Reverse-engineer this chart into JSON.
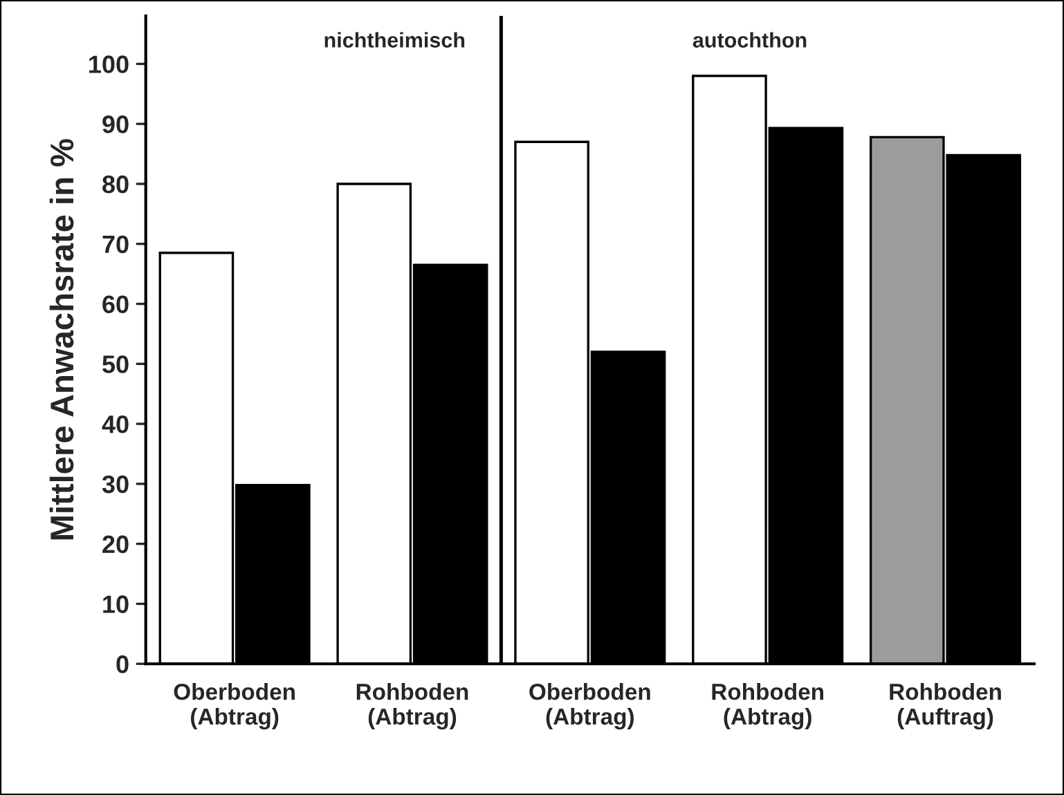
{
  "chart_data": {
    "type": "bar",
    "ylabel": "Mittlere Anwachsrate in %",
    "categories": [
      "Oberboden\n(Abtrag)",
      "Rohboden\n(Abtrag)",
      "Oberboden\n(Abtrag)",
      "Rohboden\n(Abtrag)",
      "Rohboden\n(Auftrag)"
    ],
    "series": [
      {
        "colors": [
          "#ffffff",
          "#ffffff",
          "#ffffff",
          "#ffffff",
          "#9c9c9c"
        ],
        "values": [
          68.5,
          80,
          87,
          98,
          87.8
        ]
      },
      {
        "color": "#000000",
        "values": [
          29.8,
          66.5,
          52,
          89.3,
          84.8
        ]
      }
    ],
    "ylim": [
      0,
      108
    ],
    "yticks": [
      0,
      10,
      20,
      30,
      40,
      50,
      60,
      70,
      80,
      90,
      100
    ],
    "annotations": [
      "nichtheimisch",
      "autochthon"
    ],
    "grid": false,
    "legend": false
  }
}
